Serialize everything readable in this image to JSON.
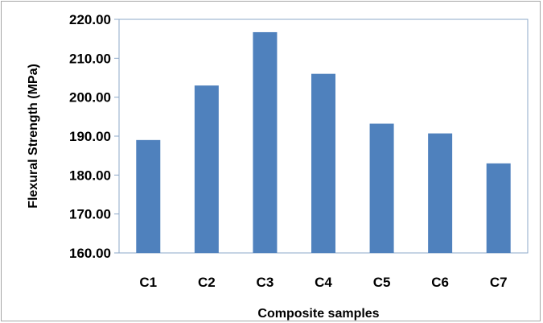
{
  "chart_data": {
    "type": "bar",
    "categories": [
      "C1",
      "C2",
      "C3",
      "C4",
      "C5",
      "C6",
      "C7"
    ],
    "values": [
      189.0,
      203.0,
      216.7,
      206.0,
      193.2,
      190.7,
      183.0
    ],
    "xlabel": "Composite samples",
    "ylabel": "Flexural Strength (MPa)",
    "ylim": [
      160,
      220
    ],
    "yticks": [
      160,
      170,
      180,
      190,
      200,
      210,
      220
    ],
    "ytick_labels": [
      "160.00",
      "170.00",
      "180.00",
      "190.00",
      "200.00",
      "210.00",
      "220.00"
    ],
    "bar_color": "#4f81bd",
    "grid": false,
    "legend": "none"
  }
}
